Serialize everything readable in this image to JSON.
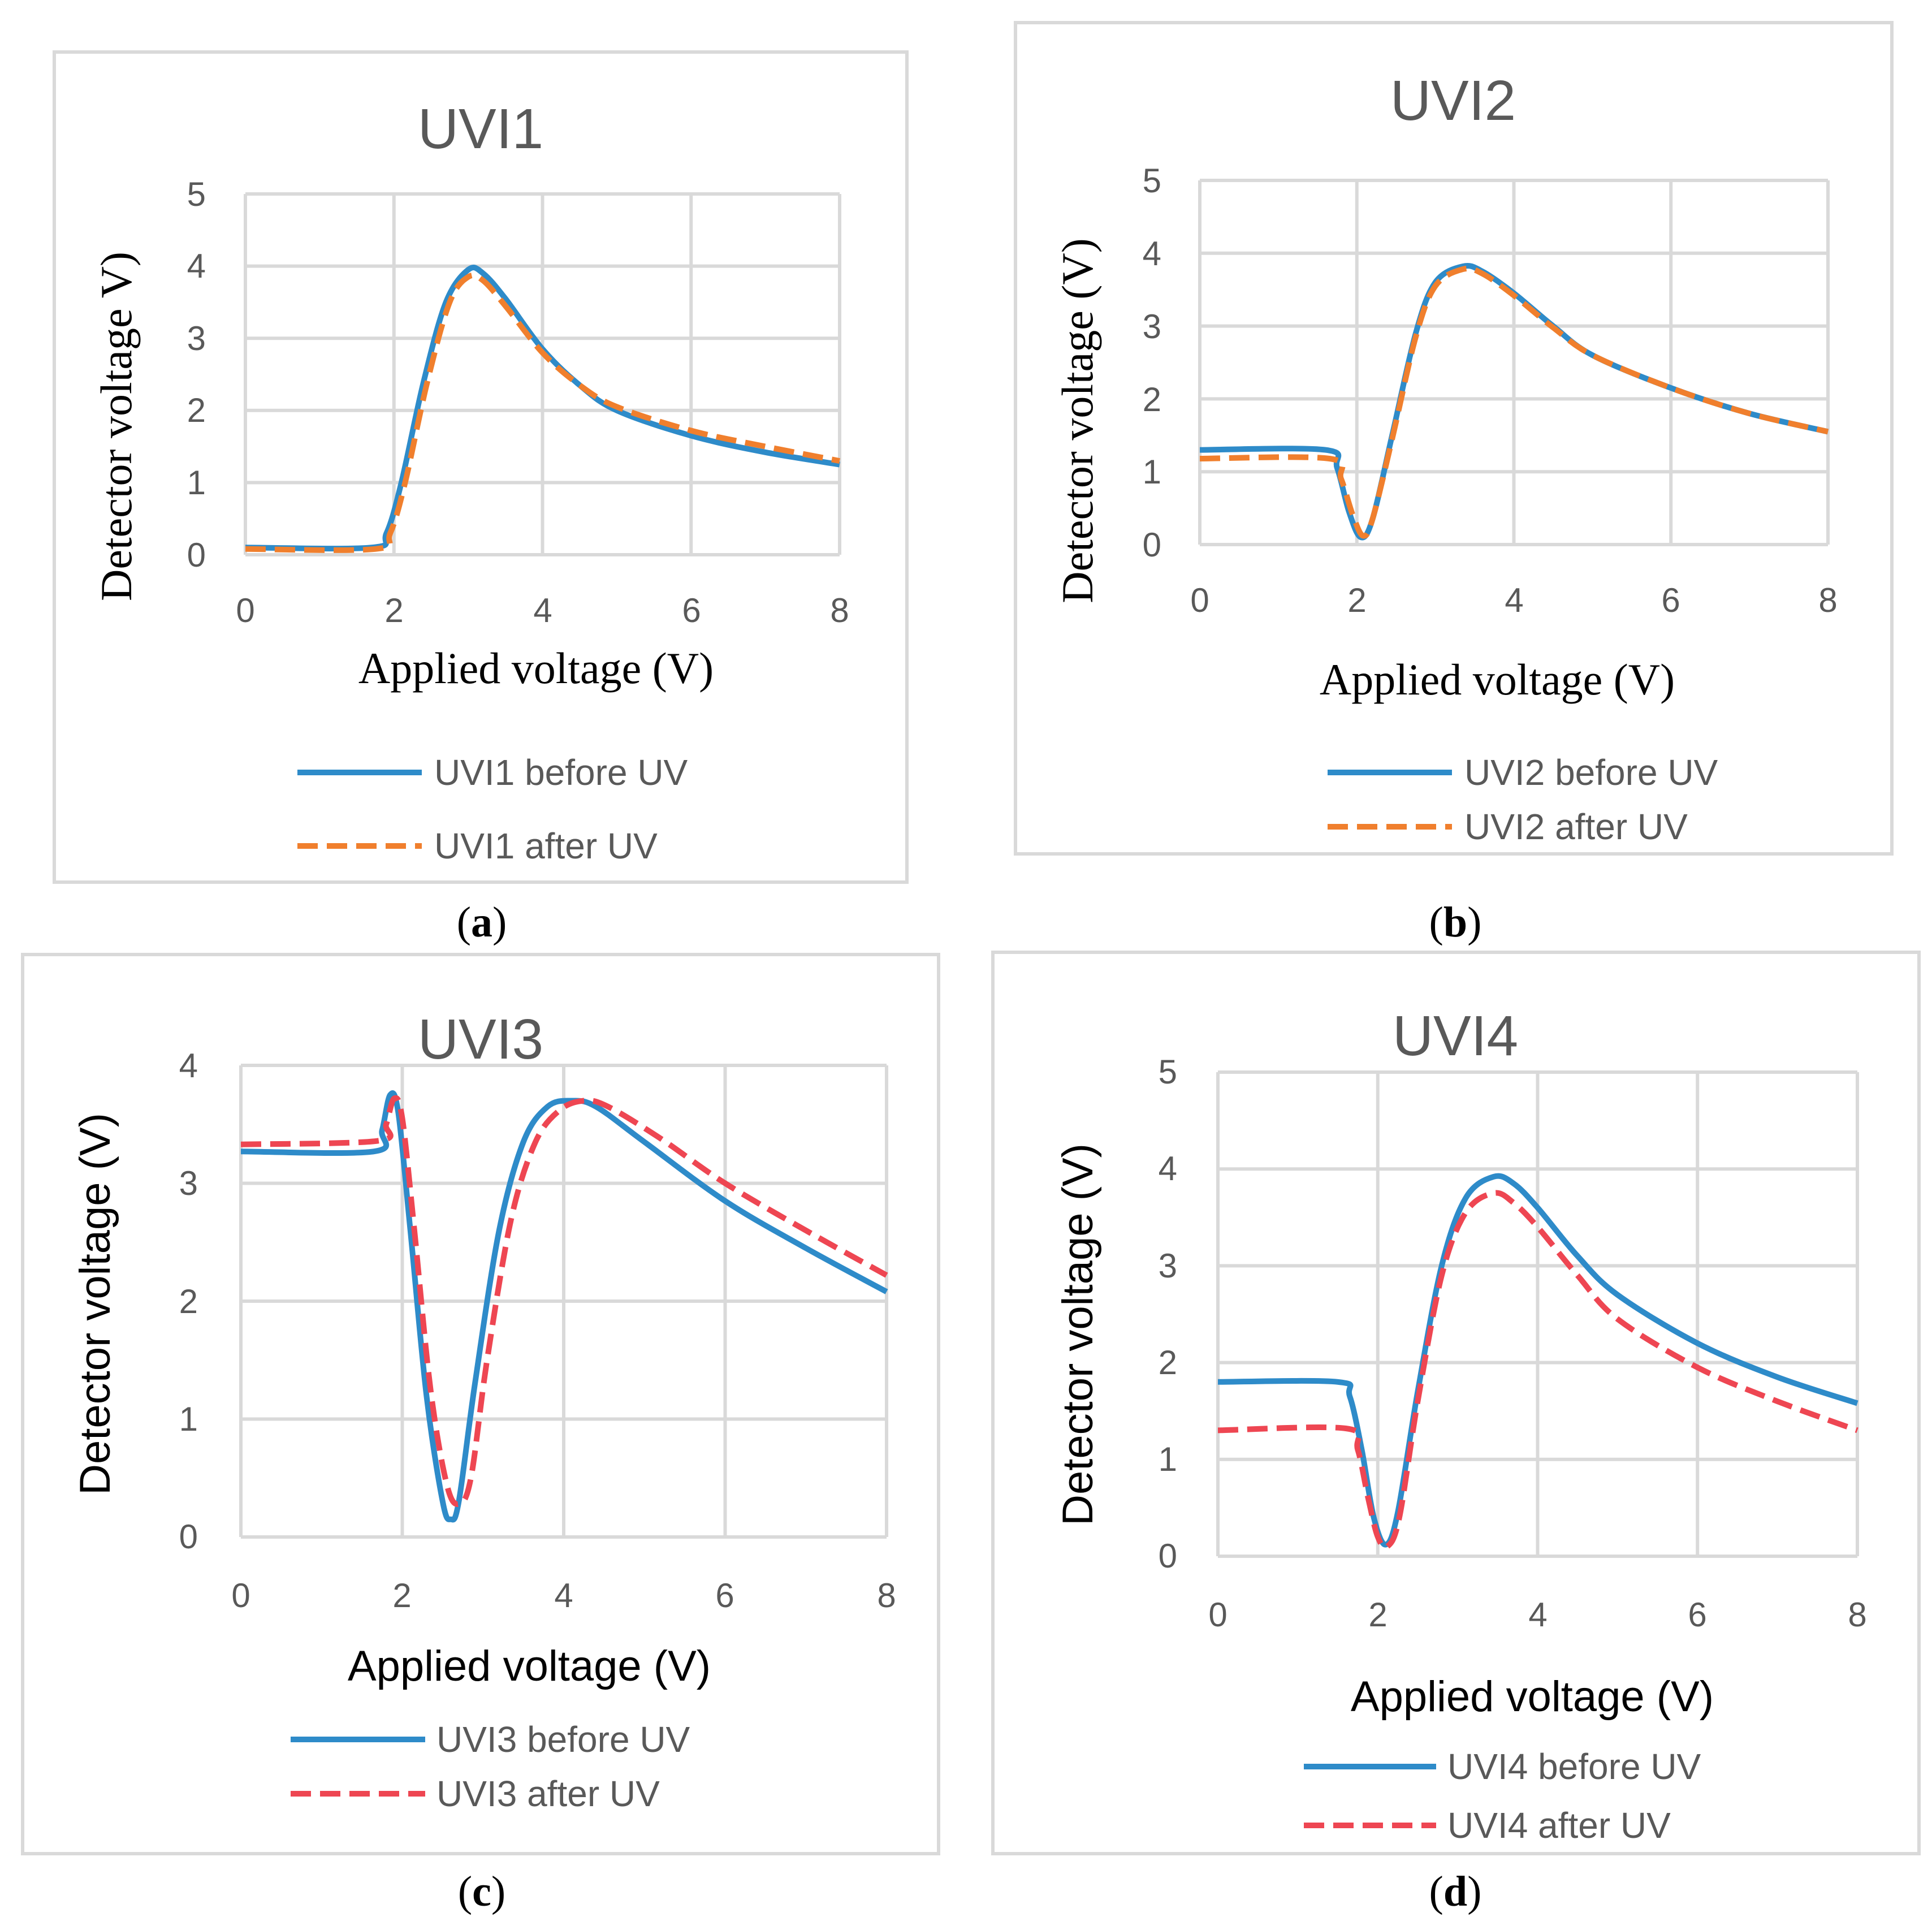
{
  "colors": {
    "before": "#2e8bc9",
    "after_orange": "#f07f2d",
    "after_red": "#ee4652",
    "grid": "#d9d9d9",
    "text": "#595959"
  },
  "chart_data": [
    {
      "id": "a",
      "type": "line",
      "title": "UVI1",
      "xlabel": "Applied voltage (V)",
      "ylabel": "Detector voltage V)",
      "xlim": [
        0,
        8
      ],
      "ylim": [
        0,
        5
      ],
      "xticks": [
        "0",
        "2",
        "4",
        "6",
        "8"
      ],
      "yticks": [
        "0",
        "1",
        "2",
        "3",
        "4",
        "5"
      ],
      "caption": "a",
      "series": [
        {
          "name": "UVI1 before UV",
          "style": "solid",
          "color": "#2e8bc9",
          "x": [
            0,
            1.7,
            1.9,
            2.1,
            2.4,
            2.7,
            3.0,
            3.2,
            3.5,
            4.0,
            4.5,
            5.0,
            6.0,
            7.0,
            8.0
          ],
          "y": [
            0.1,
            0.1,
            0.3,
            1.0,
            2.4,
            3.5,
            3.95,
            3.9,
            3.55,
            2.85,
            2.35,
            2.0,
            1.65,
            1.42,
            1.25
          ]
        },
        {
          "name": "UVI1 after UV",
          "style": "dashed",
          "color": "#f07f2d",
          "x": [
            0,
            1.75,
            1.95,
            2.15,
            2.45,
            2.75,
            3.0,
            3.2,
            3.5,
            4.0,
            4.5,
            5.0,
            6.0,
            7.0,
            8.0
          ],
          "y": [
            0.08,
            0.08,
            0.3,
            1.0,
            2.4,
            3.5,
            3.85,
            3.8,
            3.45,
            2.8,
            2.35,
            2.05,
            1.72,
            1.5,
            1.3
          ]
        }
      ]
    },
    {
      "id": "b",
      "type": "line",
      "title": "UVI2",
      "xlabel": "Applied voltage (V)",
      "ylabel": "Detector voltage (V)",
      "xlim": [
        0,
        8
      ],
      "ylim": [
        0,
        5
      ],
      "xticks": [
        "0",
        "2",
        "4",
        "6",
        "8"
      ],
      "yticks": [
        "0",
        "1",
        "2",
        "3",
        "4",
        "5"
      ],
      "caption": "b",
      "series": [
        {
          "name": "UVI2 before UV",
          "style": "solid",
          "color": "#2e8bc9",
          "x": [
            0,
            1.6,
            1.75,
            1.9,
            2.05,
            2.2,
            2.45,
            2.75,
            3.0,
            3.35,
            3.6,
            4.0,
            4.5,
            5.0,
            6.0,
            7.0,
            8.0
          ],
          "y": [
            1.3,
            1.3,
            1.05,
            0.45,
            0.1,
            0.35,
            1.5,
            2.9,
            3.6,
            3.82,
            3.75,
            3.45,
            3.0,
            2.6,
            2.15,
            1.8,
            1.55
          ]
        },
        {
          "name": "UVI2 after UV",
          "style": "dashed",
          "color": "#f07f2d",
          "x": [
            0,
            1.65,
            1.8,
            1.95,
            2.08,
            2.2,
            2.45,
            2.75,
            3.0,
            3.35,
            3.6,
            4.0,
            4.5,
            5.0,
            6.0,
            7.0,
            8.0
          ],
          "y": [
            1.18,
            1.18,
            0.9,
            0.4,
            0.12,
            0.35,
            1.45,
            2.85,
            3.55,
            3.78,
            3.72,
            3.42,
            2.98,
            2.6,
            2.15,
            1.8,
            1.55
          ]
        }
      ]
    },
    {
      "id": "c",
      "type": "line",
      "title": "UVI3",
      "xlabel": "Applied voltage (V)",
      "ylabel": "Detector voltage (V)",
      "xlim": [
        0,
        8
      ],
      "ylim": [
        0,
        4
      ],
      "xticks": [
        "0",
        "2",
        "4",
        "6",
        "8"
      ],
      "yticks": [
        "0",
        "1",
        "2",
        "3",
        "4"
      ],
      "caption": "c",
      "series": [
        {
          "name": "UVI3 before UV",
          "style": "solid",
          "color": "#2e8bc9",
          "x": [
            0,
            1.65,
            1.75,
            1.85,
            1.95,
            2.1,
            2.3,
            2.5,
            2.6,
            2.7,
            2.9,
            3.2,
            3.5,
            3.8,
            4.1,
            4.4,
            5.0,
            6.0,
            7.0,
            8.0
          ],
          "y": [
            3.27,
            3.27,
            3.45,
            3.75,
            3.6,
            2.6,
            1.2,
            0.3,
            0.15,
            0.3,
            1.3,
            2.6,
            3.35,
            3.65,
            3.7,
            3.65,
            3.35,
            2.85,
            2.45,
            2.08
          ]
        },
        {
          "name": "UVI3 after UV",
          "style": "dashed",
          "color": "#ee4652",
          "x": [
            0,
            1.7,
            1.8,
            1.9,
            2.0,
            2.15,
            2.35,
            2.55,
            2.7,
            2.85,
            3.05,
            3.35,
            3.65,
            3.95,
            4.25,
            4.55,
            5.2,
            6.0,
            7.0,
            8.0
          ],
          "y": [
            3.33,
            3.36,
            3.5,
            3.72,
            3.55,
            2.6,
            1.25,
            0.45,
            0.28,
            0.5,
            1.5,
            2.7,
            3.35,
            3.62,
            3.7,
            3.65,
            3.38,
            3.0,
            2.6,
            2.22
          ]
        }
      ]
    },
    {
      "id": "d",
      "type": "line",
      "title": "UVI4",
      "xlabel": "Applied voltage (V)",
      "ylabel": "Detector voltage (V)",
      "xlim": [
        0,
        8
      ],
      "ylim": [
        0,
        5
      ],
      "xticks": [
        "0",
        "2",
        "4",
        "6",
        "8"
      ],
      "yticks": [
        "0",
        "1",
        "2",
        "3",
        "4",
        "5"
      ],
      "caption": "d",
      "series": [
        {
          "name": "UVI4 before UV",
          "style": "solid",
          "color": "#2e8bc9",
          "x": [
            0,
            1.5,
            1.65,
            1.8,
            1.95,
            2.1,
            2.25,
            2.5,
            2.8,
            3.1,
            3.45,
            3.7,
            4.0,
            4.5,
            5.0,
            6.0,
            7.0,
            8.0
          ],
          "y": [
            1.8,
            1.8,
            1.65,
            1.1,
            0.4,
            0.12,
            0.45,
            1.7,
            3.0,
            3.7,
            3.92,
            3.85,
            3.6,
            3.1,
            2.7,
            2.2,
            1.85,
            1.58
          ]
        },
        {
          "name": "UVI4 after UV",
          "style": "dashed",
          "color": "#ee4652",
          "x": [
            0,
            1.6,
            1.75,
            1.88,
            2.0,
            2.12,
            2.27,
            2.5,
            2.8,
            3.1,
            3.45,
            3.7,
            4.0,
            4.5,
            5.0,
            6.0,
            7.0,
            8.0
          ],
          "y": [
            1.3,
            1.32,
            1.1,
            0.6,
            0.2,
            0.1,
            0.4,
            1.6,
            2.9,
            3.55,
            3.75,
            3.65,
            3.4,
            2.9,
            2.45,
            1.95,
            1.6,
            1.3
          ]
        }
      ]
    }
  ]
}
